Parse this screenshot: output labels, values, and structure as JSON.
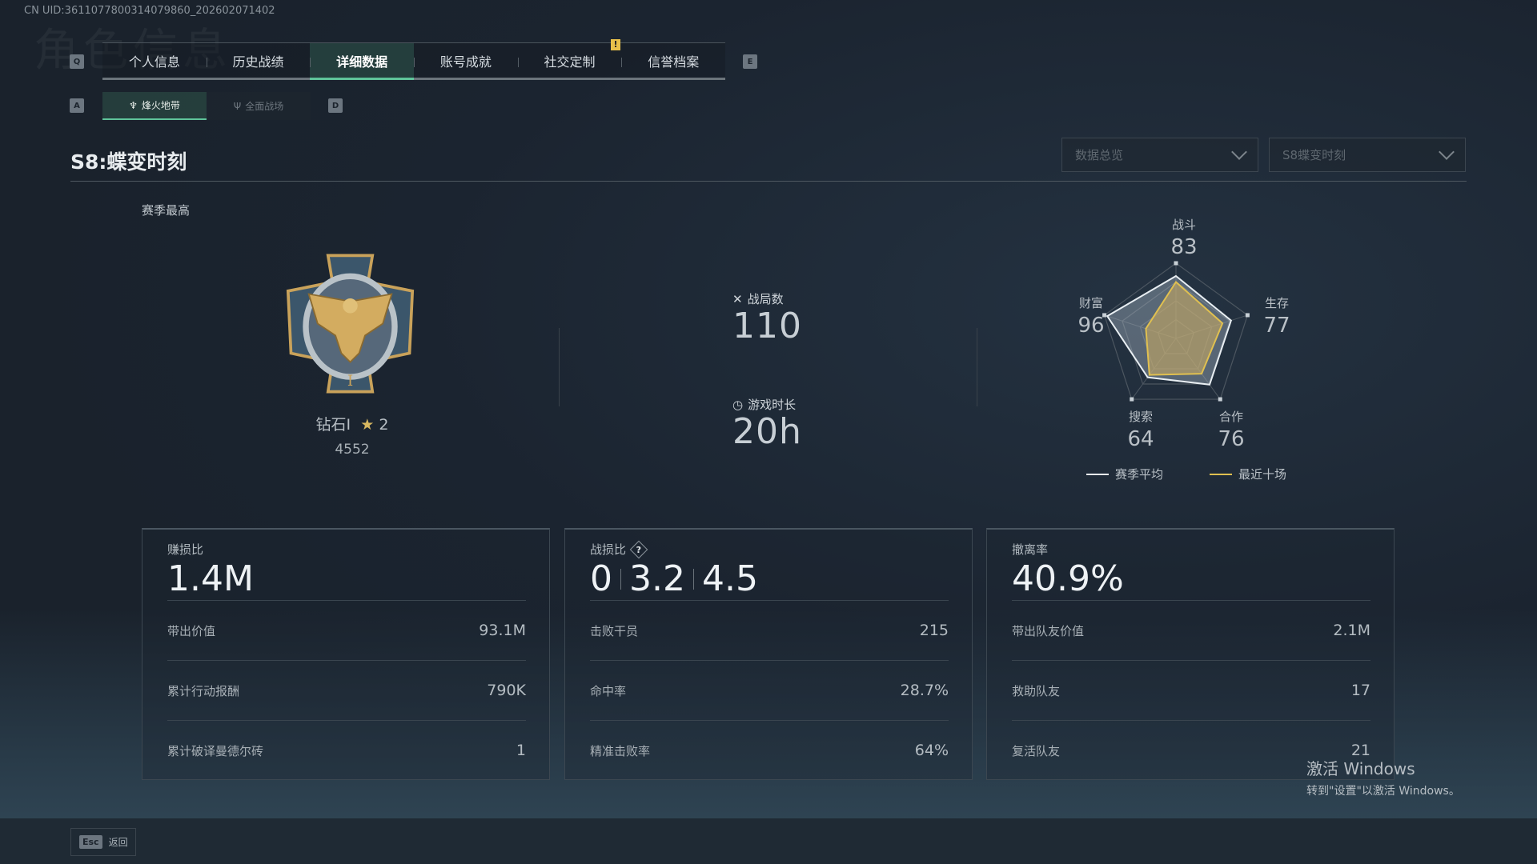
{
  "uid": "CN UID:3611077800314079860_202602071402",
  "ghost_title": "角色信息",
  "tabs": {
    "prev_key": "Q",
    "next_key": "E",
    "items": [
      {
        "label": "个人信息"
      },
      {
        "label": "历史战绩"
      },
      {
        "label": "详细数据",
        "active": true
      },
      {
        "label": "账号成就"
      },
      {
        "label": "社交定制",
        "badge": "!"
      },
      {
        "label": "信誉档案"
      }
    ]
  },
  "subtabs": {
    "prev_key": "A",
    "next_key": "D",
    "items": [
      {
        "label": "烽火地带",
        "icon": "beacon-icon",
        "active": true
      },
      {
        "label": "全面战场",
        "icon": "trident-icon"
      }
    ]
  },
  "season_title": "S8:蝶变时刻",
  "dropdowns": [
    {
      "value": "数据总览"
    },
    {
      "value": "S8蝶变时刻"
    }
  ],
  "rank": {
    "heading": "赛季最高",
    "name": "钻石I",
    "stars": "2",
    "score": "4552",
    "icon": "eagle-medal-icon"
  },
  "summary": {
    "matches_label": "战局数",
    "matches": "110",
    "playtime_label": "游戏时长",
    "playtime": "20h"
  },
  "chart_data": {
    "type": "radar",
    "axes": [
      "战斗",
      "生存",
      "合作",
      "搜索",
      "财富"
    ],
    "range": [
      0,
      100
    ],
    "values_printed": [
      "83",
      "77",
      "76",
      "64",
      "96"
    ],
    "series": [
      {
        "name": "赛季平均",
        "color": "#e8eef2",
        "values": [
          83,
          77,
          76,
          64,
          96
        ]
      },
      {
        "name": "最近十场",
        "color": "#e0c050",
        "values": [
          75,
          65,
          58,
          60,
          42
        ]
      }
    ]
  },
  "cards": [
    {
      "title": "赚损比",
      "big": [
        "1.4M"
      ],
      "rows": [
        {
          "label": "带出价值",
          "value": "93.1M"
        },
        {
          "label": "累计行动报酬",
          "value": "790K"
        },
        {
          "label": "累计破译曼德尔砖",
          "value": "1"
        }
      ]
    },
    {
      "title": "战损比",
      "help": "?",
      "big": [
        "0",
        "3.2",
        "4.5"
      ],
      "rows": [
        {
          "label": "击败干员",
          "value": "215"
        },
        {
          "label": "命中率",
          "value": "28.7%"
        },
        {
          "label": "精准击败率",
          "value": "64%"
        }
      ]
    },
    {
      "title": "撤离率",
      "big": [
        "40.9%"
      ],
      "rows": [
        {
          "label": "带出队友价值",
          "value": "2.1M"
        },
        {
          "label": "救助队友",
          "value": "17"
        },
        {
          "label": "复活队友",
          "value": "21"
        }
      ]
    }
  ],
  "watermark": {
    "line1": "激活 Windows",
    "line2": "转到\"设置\"以激活 Windows。"
  },
  "footer": {
    "esc_key": "Esc",
    "back": "返回"
  }
}
